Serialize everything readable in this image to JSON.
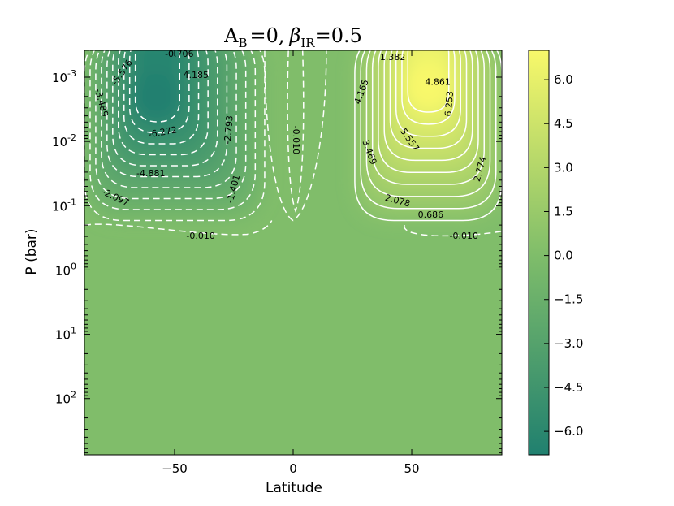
{
  "chart_data": {
    "type": "contour",
    "title": {
      "a_main": "A",
      "a_sub": "B",
      "eq1": "=0,",
      "beta": "β",
      "beta_sub": "IR",
      "eq2": "=0.5"
    },
    "xlabel": "Latitude",
    "ylabel": "P (bar)",
    "xlim": [
      -88,
      88
    ],
    "ylim": [
      0.000383,
      750
    ],
    "y_scale": "log",
    "y_inverted": true,
    "x_ticks": [
      {
        "value": -50,
        "label": "−50"
      },
      {
        "value": 0,
        "label": "0"
      },
      {
        "value": 50,
        "label": "50"
      }
    ],
    "y_ticks": [
      {
        "value": 0.001,
        "base": "10",
        "exp": "-3"
      },
      {
        "value": 0.01,
        "base": "10",
        "exp": "-2"
      },
      {
        "value": 0.1,
        "base": "10",
        "exp": "-1"
      },
      {
        "value": 1,
        "base": "10",
        "exp": "0"
      },
      {
        "value": 10,
        "base": "10",
        "exp": "1"
      },
      {
        "value": 100,
        "base": "10",
        "exp": "2"
      }
    ],
    "colorbar": {
      "range": [
        -6.8,
        7.0
      ],
      "colors": [
        "#20806f",
        "#7fbd6a",
        "#f8f86a"
      ],
      "ticks": [
        {
          "value": 6.0,
          "label": "6.0"
        },
        {
          "value": 4.5,
          "label": "4.5"
        },
        {
          "value": 3.0,
          "label": "3.0"
        },
        {
          "value": 1.5,
          "label": "1.5"
        },
        {
          "value": 0.0,
          "label": "0.0"
        },
        {
          "value": -1.5,
          "label": "−1.5"
        },
        {
          "value": -3.0,
          "label": "−3.0"
        },
        {
          "value": -4.5,
          "label": "−4.5"
        },
        {
          "value": -6.0,
          "label": "−6.0"
        }
      ]
    },
    "background_color": "#80bd6a",
    "cells": [
      {
        "name": "southern-cell",
        "center_lat": -58,
        "center_p": 0.0025,
        "peak": -6.8
      },
      {
        "name": "equatorial-band",
        "center_lat": 1,
        "center_p": 0.003,
        "peak": 0.6
      },
      {
        "name": "northern-cell",
        "center_lat": 57,
        "center_p": 0.0017,
        "peak": 7.0
      }
    ],
    "contour_labels": [
      {
        "text": "-0.706",
        "lat": -48,
        "p": 0.00044,
        "angle": 0
      },
      {
        "text": "-5.576",
        "lat": -72,
        "p": 0.00085,
        "angle": -55
      },
      {
        "text": "4.185",
        "lat": -41,
        "p": 0.00095,
        "angle": 0
      },
      {
        "text": "-3.489",
        "lat": -81,
        "p": 0.0025,
        "angle": 75
      },
      {
        "text": "-6.272",
        "lat": -55,
        "p": 0.0073,
        "angle": -10
      },
      {
        "text": "-2.793",
        "lat": -27,
        "p": 0.0066,
        "angle": -85
      },
      {
        "text": "-4.881",
        "lat": -60,
        "p": 0.032,
        "angle": 0
      },
      {
        "text": "-1.401",
        "lat": -25,
        "p": 0.055,
        "angle": -75
      },
      {
        "text": "-2.097",
        "lat": -75,
        "p": 0.075,
        "angle": 25
      },
      {
        "text": "-0.010",
        "lat": 1,
        "p": 0.0095,
        "angle": 90
      },
      {
        "text": "-0.010",
        "lat": -39,
        "p": 0.3,
        "angle": 0
      },
      {
        "text": "1.382",
        "lat": 42,
        "p": 0.0005,
        "angle": 0
      },
      {
        "text": "4.861",
        "lat": 61,
        "p": 0.0012,
        "angle": 0
      },
      {
        "text": "6.253",
        "lat": 66,
        "p": 0.0026,
        "angle": -85
      },
      {
        "text": "4.165",
        "lat": 29,
        "p": 0.0017,
        "angle": -70
      },
      {
        "text": "5.557",
        "lat": 49,
        "p": 0.0095,
        "angle": 55
      },
      {
        "text": "3.469",
        "lat": 32,
        "p": 0.0148,
        "angle": 70
      },
      {
        "text": "2.774",
        "lat": 79,
        "p": 0.027,
        "angle": -75
      },
      {
        "text": "2.078",
        "lat": 44,
        "p": 0.085,
        "angle": 15
      },
      {
        "text": "0.686",
        "lat": 58,
        "p": 0.14,
        "angle": 0
      },
      {
        "text": "-0.010",
        "lat": 72,
        "p": 0.3,
        "angle": 0
      }
    ]
  }
}
